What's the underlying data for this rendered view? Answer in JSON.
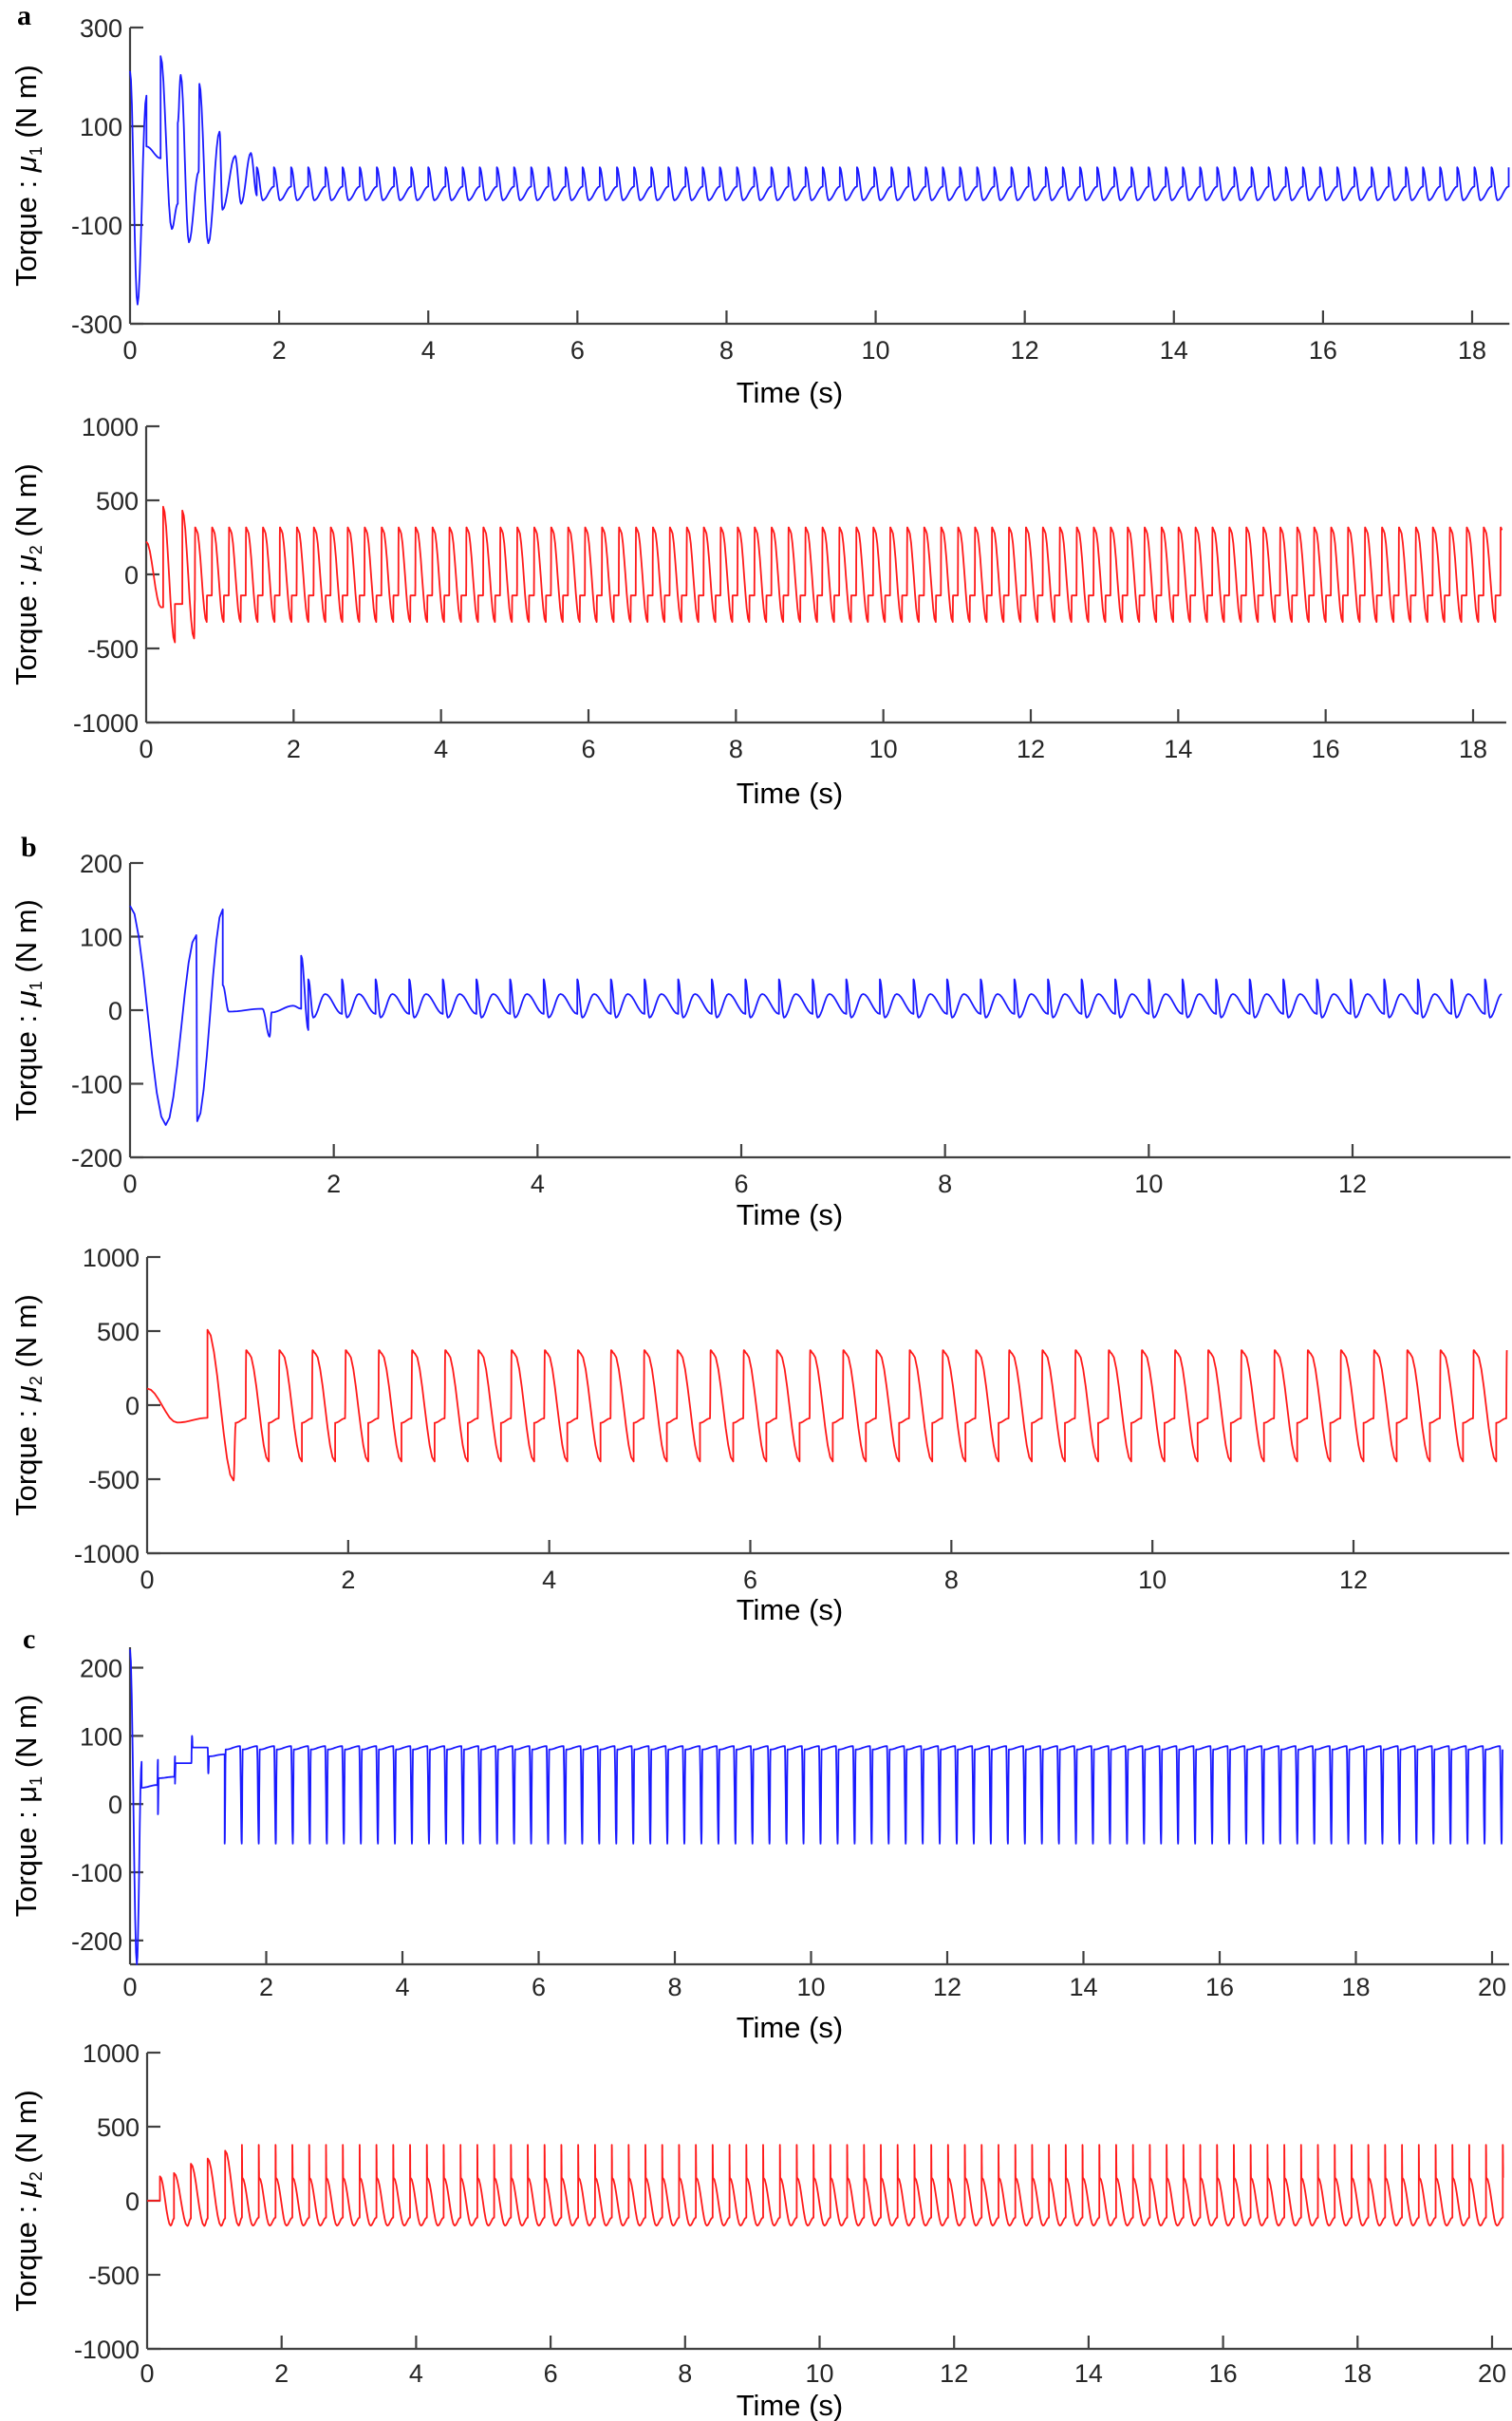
{
  "panel_labels": [
    "a",
    "b",
    "c"
  ],
  "chart_data": [
    {
      "panel": "a",
      "type": "line",
      "color": "#1a1aff",
      "xlabel": "Time (s)",
      "ylabel": {
        "prefix": "Torque :  ",
        "symbol": "μ",
        "symbol_italic": true,
        "sub": "1",
        "unit": " (N m)"
      },
      "xlim": [
        0,
        18.5
      ],
      "ylim": [
        -300,
        300
      ],
      "xticks": [
        0,
        2,
        4,
        6,
        8,
        10,
        12,
        14,
        16,
        18
      ],
      "yticks": [
        -300,
        -100,
        100,
        300
      ],
      "transient": [
        [
          0,
          212
        ],
        [
          0.1,
          -261
        ],
        [
          0.22,
          162
        ],
        [
          0.22,
          59
        ],
        [
          0.41,
          35
        ],
        [
          0.41,
          242
        ],
        [
          0.56,
          -108
        ],
        [
          0.64,
          -57
        ],
        [
          0.64,
          107
        ],
        [
          0.68,
          204
        ],
        [
          0.79,
          -135
        ],
        [
          0.92,
          8
        ],
        [
          0.93,
          186
        ],
        [
          1.05,
          -137
        ],
        [
          1.2,
          89
        ],
        [
          1.24,
          -69
        ],
        [
          1.41,
          40
        ],
        [
          1.49,
          -57
        ],
        [
          1.62,
          46
        ],
        [
          1.7,
          -40
        ]
      ],
      "steady": {
        "start": 1.7,
        "period": 0.23,
        "profile": [
          [
            0,
            -22
          ],
          [
            0,
            17
          ],
          [
            0.35,
            -50
          ],
          [
            1,
            -22
          ]
        ]
      }
    },
    {
      "panel": "a",
      "type": "line",
      "color": "#ff1a1a",
      "xlabel": "Time (s)",
      "ylabel": {
        "prefix": "Torque :  ",
        "symbol": "μ",
        "symbol_italic": true,
        "sub": "2",
        "unit": " (N m)"
      },
      "xlim": [
        0,
        18.45
      ],
      "ylim": [
        -1000,
        1000
      ],
      "xticks": [
        0,
        2,
        4,
        6,
        8,
        10,
        12,
        14,
        16,
        18
      ],
      "yticks": [
        -1000,
        -500,
        0,
        500,
        1000
      ],
      "transient": [
        [
          0,
          222
        ],
        [
          0.2,
          -222
        ],
        [
          0.23,
          -222
        ],
        [
          0.23,
          457
        ],
        [
          0.39,
          -459
        ],
        [
          0.39,
          -200
        ],
        [
          0.49,
          -200
        ],
        [
          0.49,
          431
        ],
        [
          0.65,
          -433
        ],
        [
          0.66,
          -170
        ]
      ],
      "steady": {
        "start": 0.66,
        "period": 0.23,
        "profile": [
          [
            0,
            -142
          ],
          [
            0.02,
            317
          ],
          [
            0.1,
            300
          ],
          [
            0.7,
            -321
          ],
          [
            0.72,
            -142
          ],
          [
            1,
            -142
          ]
        ]
      }
    },
    {
      "panel": "b",
      "type": "line",
      "color": "#1a1aff",
      "xlabel": "Time (s)",
      "ylabel": {
        "prefix": "Torque :  ",
        "symbol": "μ",
        "symbol_italic": true,
        "sub": "1",
        "unit": " (N m)"
      },
      "xlim": [
        0,
        13.55
      ],
      "ylim": [
        -200,
        200
      ],
      "xticks": [
        0,
        2,
        4,
        6,
        8,
        10,
        12
      ],
      "yticks": [
        -200,
        -100,
        0,
        100,
        200
      ],
      "transient": [
        [
          0,
          142
        ],
        [
          0.35,
          -156
        ],
        [
          0.65,
          102
        ],
        [
          0.66,
          -151
        ],
        [
          0.91,
          137
        ],
        [
          0.91,
          34
        ],
        [
          0.97,
          -2
        ],
        [
          1.3,
          2
        ],
        [
          1.37,
          -36
        ],
        [
          1.39,
          -3
        ],
        [
          1.6,
          6
        ],
        [
          1.68,
          2
        ],
        [
          1.68,
          74
        ],
        [
          1.75,
          -27
        ]
      ],
      "steady": {
        "start": 1.75,
        "period": 0.33,
        "profile": [
          [
            0,
            -5
          ],
          [
            0,
            42
          ],
          [
            0.15,
            -10
          ],
          [
            0.5,
            22
          ],
          [
            1,
            -5
          ]
        ]
      }
    },
    {
      "panel": "b",
      "type": "line",
      "color": "#ff1a1a",
      "xlabel": "Time (s)",
      "ylabel": {
        "prefix": "Torque :  ",
        "symbol": "μ",
        "symbol_italic": true,
        "sub": "2",
        "unit": " (N m)"
      },
      "xlim": [
        0,
        13.55
      ],
      "ylim": [
        -1000,
        1000
      ],
      "xticks": [
        0,
        2,
        4,
        6,
        8,
        10,
        12
      ],
      "yticks": [
        -1000,
        -500,
        0,
        500,
        1000
      ],
      "transient": [
        [
          0,
          112
        ],
        [
          0.3,
          -118
        ],
        [
          0.6,
          -86
        ],
        [
          0.6,
          509
        ],
        [
          0.86,
          -509
        ],
        [
          0.88,
          -140
        ]
      ],
      "steady": {
        "start": 0.88,
        "period": 0.33,
        "profile": [
          [
            0,
            -120
          ],
          [
            0.3,
            -90
          ],
          [
            0.32,
            371
          ],
          [
            0.4,
            350
          ],
          [
            1,
            -380
          ]
        ]
      }
    },
    {
      "panel": "c",
      "type": "line",
      "color": "#1a1aff",
      "xlabel": "Time (s)",
      "ylabel": {
        "prefix": "Torque :  ",
        "symbol": "μ",
        "symbol_italic": false,
        "sub": "1",
        "unit": " (N m)"
      },
      "xlim": [
        0,
        20.25
      ],
      "ylim": [
        -235,
        230
      ],
      "xticks": [
        0,
        2,
        4,
        6,
        8,
        10,
        12,
        14,
        16,
        18,
        20
      ],
      "yticks": [
        -200,
        -100,
        0,
        100,
        200
      ],
      "transient": [
        [
          0,
          227
        ],
        [
          0.1,
          -235
        ],
        [
          0.17,
          62
        ],
        [
          0.17,
          24
        ],
        [
          0.4,
          28
        ],
        [
          0.41,
          65
        ],
        [
          0.41,
          -15
        ],
        [
          0.42,
          38
        ],
        [
          0.65,
          40
        ],
        [
          0.66,
          70
        ],
        [
          0.66,
          30
        ],
        [
          0.67,
          60
        ],
        [
          0.9,
          60
        ],
        [
          0.91,
          100
        ],
        [
          0.92,
          83
        ],
        [
          1.14,
          83
        ],
        [
          1.15,
          45
        ],
        [
          1.16,
          70
        ],
        [
          1.39,
          73
        ]
      ],
      "steady": {
        "start": 1.39,
        "period": 0.25,
        "profile": [
          [
            0,
            -58
          ],
          [
            0.06,
            80
          ],
          [
            0.9,
            85
          ],
          [
            1,
            -58
          ]
        ]
      }
    },
    {
      "panel": "c",
      "type": "line",
      "color": "#ff1a1a",
      "xlabel": "Time (s)",
      "ylabel": {
        "prefix": "Torque :  ",
        "symbol": "μ",
        "symbol_italic": true,
        "sub": "2",
        "unit": " (N m)"
      },
      "xlim": [
        0,
        20.3
      ],
      "ylim": [
        -1000,
        1000
      ],
      "xticks": [
        0,
        2,
        4,
        6,
        8,
        10,
        12,
        14,
        16,
        18,
        20
      ],
      "yticks": [
        -1000,
        -500,
        0,
        500,
        1000
      ],
      "transient": [
        [
          0,
          0
        ],
        [
          0.19,
          0
        ],
        [
          0.19,
          165
        ],
        [
          0.35,
          -168
        ],
        [
          0.4,
          -120
        ],
        [
          0.4,
          187
        ],
        [
          0.6,
          -170
        ],
        [
          0.65,
          -120
        ],
        [
          0.65,
          250
        ],
        [
          0.85,
          -170
        ],
        [
          0.9,
          -120
        ],
        [
          0.9,
          285
        ],
        [
          1.1,
          -170
        ],
        [
          1.16,
          -120
        ],
        [
          1.16,
          338
        ],
        [
          1.36,
          -168
        ],
        [
          1.41,
          -114
        ]
      ],
      "steady": {
        "start": 1.41,
        "period": 0.25,
        "profile": [
          [
            0,
            -114
          ],
          [
            0,
            377
          ],
          [
            0.02,
            155
          ],
          [
            0.65,
            -168
          ],
          [
            1,
            -114
          ]
        ]
      }
    }
  ]
}
